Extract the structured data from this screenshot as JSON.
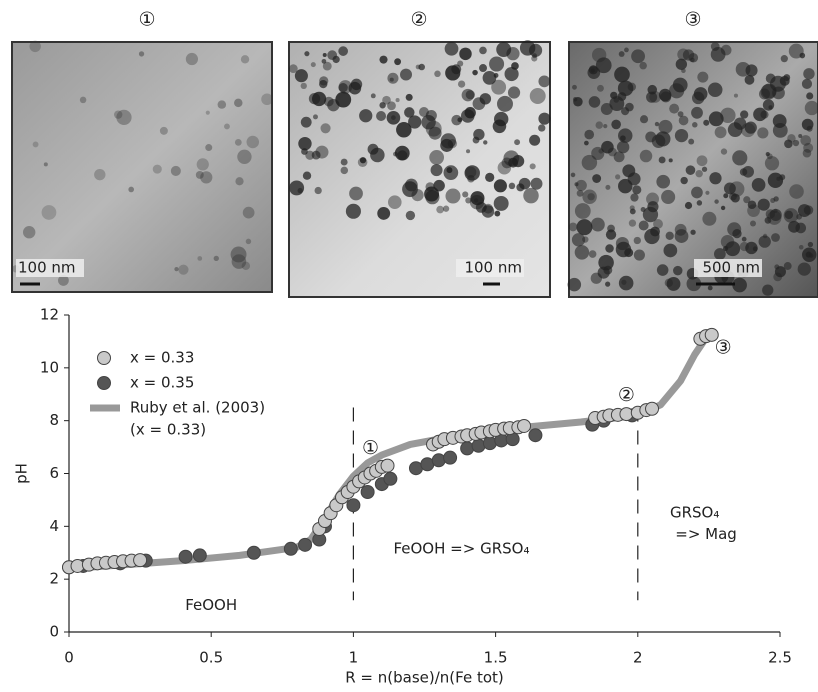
{
  "panels": [
    {
      "label": "①",
      "scale": "100 nm"
    },
    {
      "label": "②",
      "scale": "100 nm"
    },
    {
      "label": "③",
      "scale": "500 nm"
    }
  ],
  "chart_data": {
    "type": "scatter",
    "xlabel": "R = n(base)/n(Fe tot)",
    "ylabel": "pH",
    "xlim": [
      0,
      2.5
    ],
    "xticks": [
      0,
      0.5,
      1,
      1.5,
      2,
      2.5
    ],
    "ylim": [
      0,
      12
    ],
    "yticks": [
      0,
      2,
      4,
      6,
      8,
      10,
      12
    ],
    "grid": false,
    "legend": "upper left",
    "vlines": [
      1,
      2
    ],
    "series": [
      {
        "name": "x = 0.33",
        "kind": "scatter",
        "color": "#c9c9c9",
        "x": [
          0,
          0.03,
          0.07,
          0.1,
          0.13,
          0.16,
          0.19,
          0.22,
          0.25,
          0.88,
          0.9,
          0.92,
          0.94,
          0.96,
          0.98,
          1.0,
          1.02,
          1.04,
          1.06,
          1.08,
          1.1,
          1.12,
          1.28,
          1.3,
          1.32,
          1.35,
          1.38,
          1.4,
          1.43,
          1.45,
          1.48,
          1.5,
          1.53,
          1.55,
          1.58,
          1.6,
          1.85,
          1.88,
          1.9,
          1.93,
          1.96,
          2.0,
          2.03,
          2.05,
          2.22,
          2.24,
          2.26
        ],
        "values": [
          2.45,
          2.5,
          2.55,
          2.6,
          2.62,
          2.65,
          2.68,
          2.7,
          2.72,
          3.9,
          4.2,
          4.5,
          4.8,
          5.1,
          5.3,
          5.5,
          5.7,
          5.85,
          6.0,
          6.1,
          6.25,
          6.3,
          7.1,
          7.2,
          7.3,
          7.35,
          7.4,
          7.45,
          7.5,
          7.55,
          7.6,
          7.65,
          7.7,
          7.72,
          7.75,
          7.8,
          8.1,
          8.15,
          8.2,
          8.22,
          8.25,
          8.3,
          8.4,
          8.45,
          11.1,
          11.2,
          11.25
        ]
      },
      {
        "name": "x = 0.35",
        "kind": "scatter",
        "color": "#555555",
        "x": [
          0,
          0.05,
          0.18,
          0.27,
          0.41,
          0.46,
          0.65,
          0.78,
          0.83,
          0.88,
          0.9,
          1.0,
          1.05,
          1.1,
          1.13,
          1.22,
          1.26,
          1.3,
          1.34,
          1.4,
          1.44,
          1.48,
          1.52,
          1.56,
          1.64,
          1.84,
          1.88,
          1.98
        ],
        "values": [
          2.45,
          2.5,
          2.6,
          2.7,
          2.85,
          2.9,
          3.0,
          3.15,
          3.3,
          3.5,
          4.0,
          4.8,
          5.3,
          5.6,
          5.8,
          6.2,
          6.35,
          6.5,
          6.6,
          6.95,
          7.05,
          7.15,
          7.25,
          7.3,
          7.45,
          7.85,
          8.0,
          8.2
        ]
      },
      {
        "name": "Ruby et al. (2003)",
        "note": "(x = 0.33)",
        "kind": "line",
        "color": "#999999",
        "x": [
          0,
          0.2,
          0.4,
          0.6,
          0.8,
          0.85,
          0.9,
          0.95,
          1.0,
          1.05,
          1.1,
          1.2,
          1.4,
          1.6,
          1.8,
          2.0,
          2.08,
          2.15,
          2.2,
          2.25
        ],
        "values": [
          2.4,
          2.55,
          2.7,
          2.9,
          3.2,
          3.5,
          4.3,
          5.2,
          5.9,
          6.4,
          6.7,
          7.1,
          7.5,
          7.75,
          7.95,
          8.2,
          8.6,
          9.5,
          10.5,
          11.3
        ]
      }
    ],
    "annotations": [
      {
        "text": "①",
        "x": 1.06,
        "y": 6.95
      },
      {
        "text": "②",
        "x": 1.96,
        "y": 8.95
      },
      {
        "text": "③",
        "x": 2.3,
        "y": 10.75
      },
      {
        "text": "FeOOH",
        "x": 0.5,
        "y": 1.0
      },
      {
        "text": "FeOOH => GRSO₄",
        "x": 1.38,
        "y": 3.15
      },
      {
        "text": "GRSO₄",
        "x": 2.2,
        "y": 4.5
      },
      {
        "text": "=> Mag",
        "x": 2.24,
        "y": 3.7
      }
    ]
  }
}
